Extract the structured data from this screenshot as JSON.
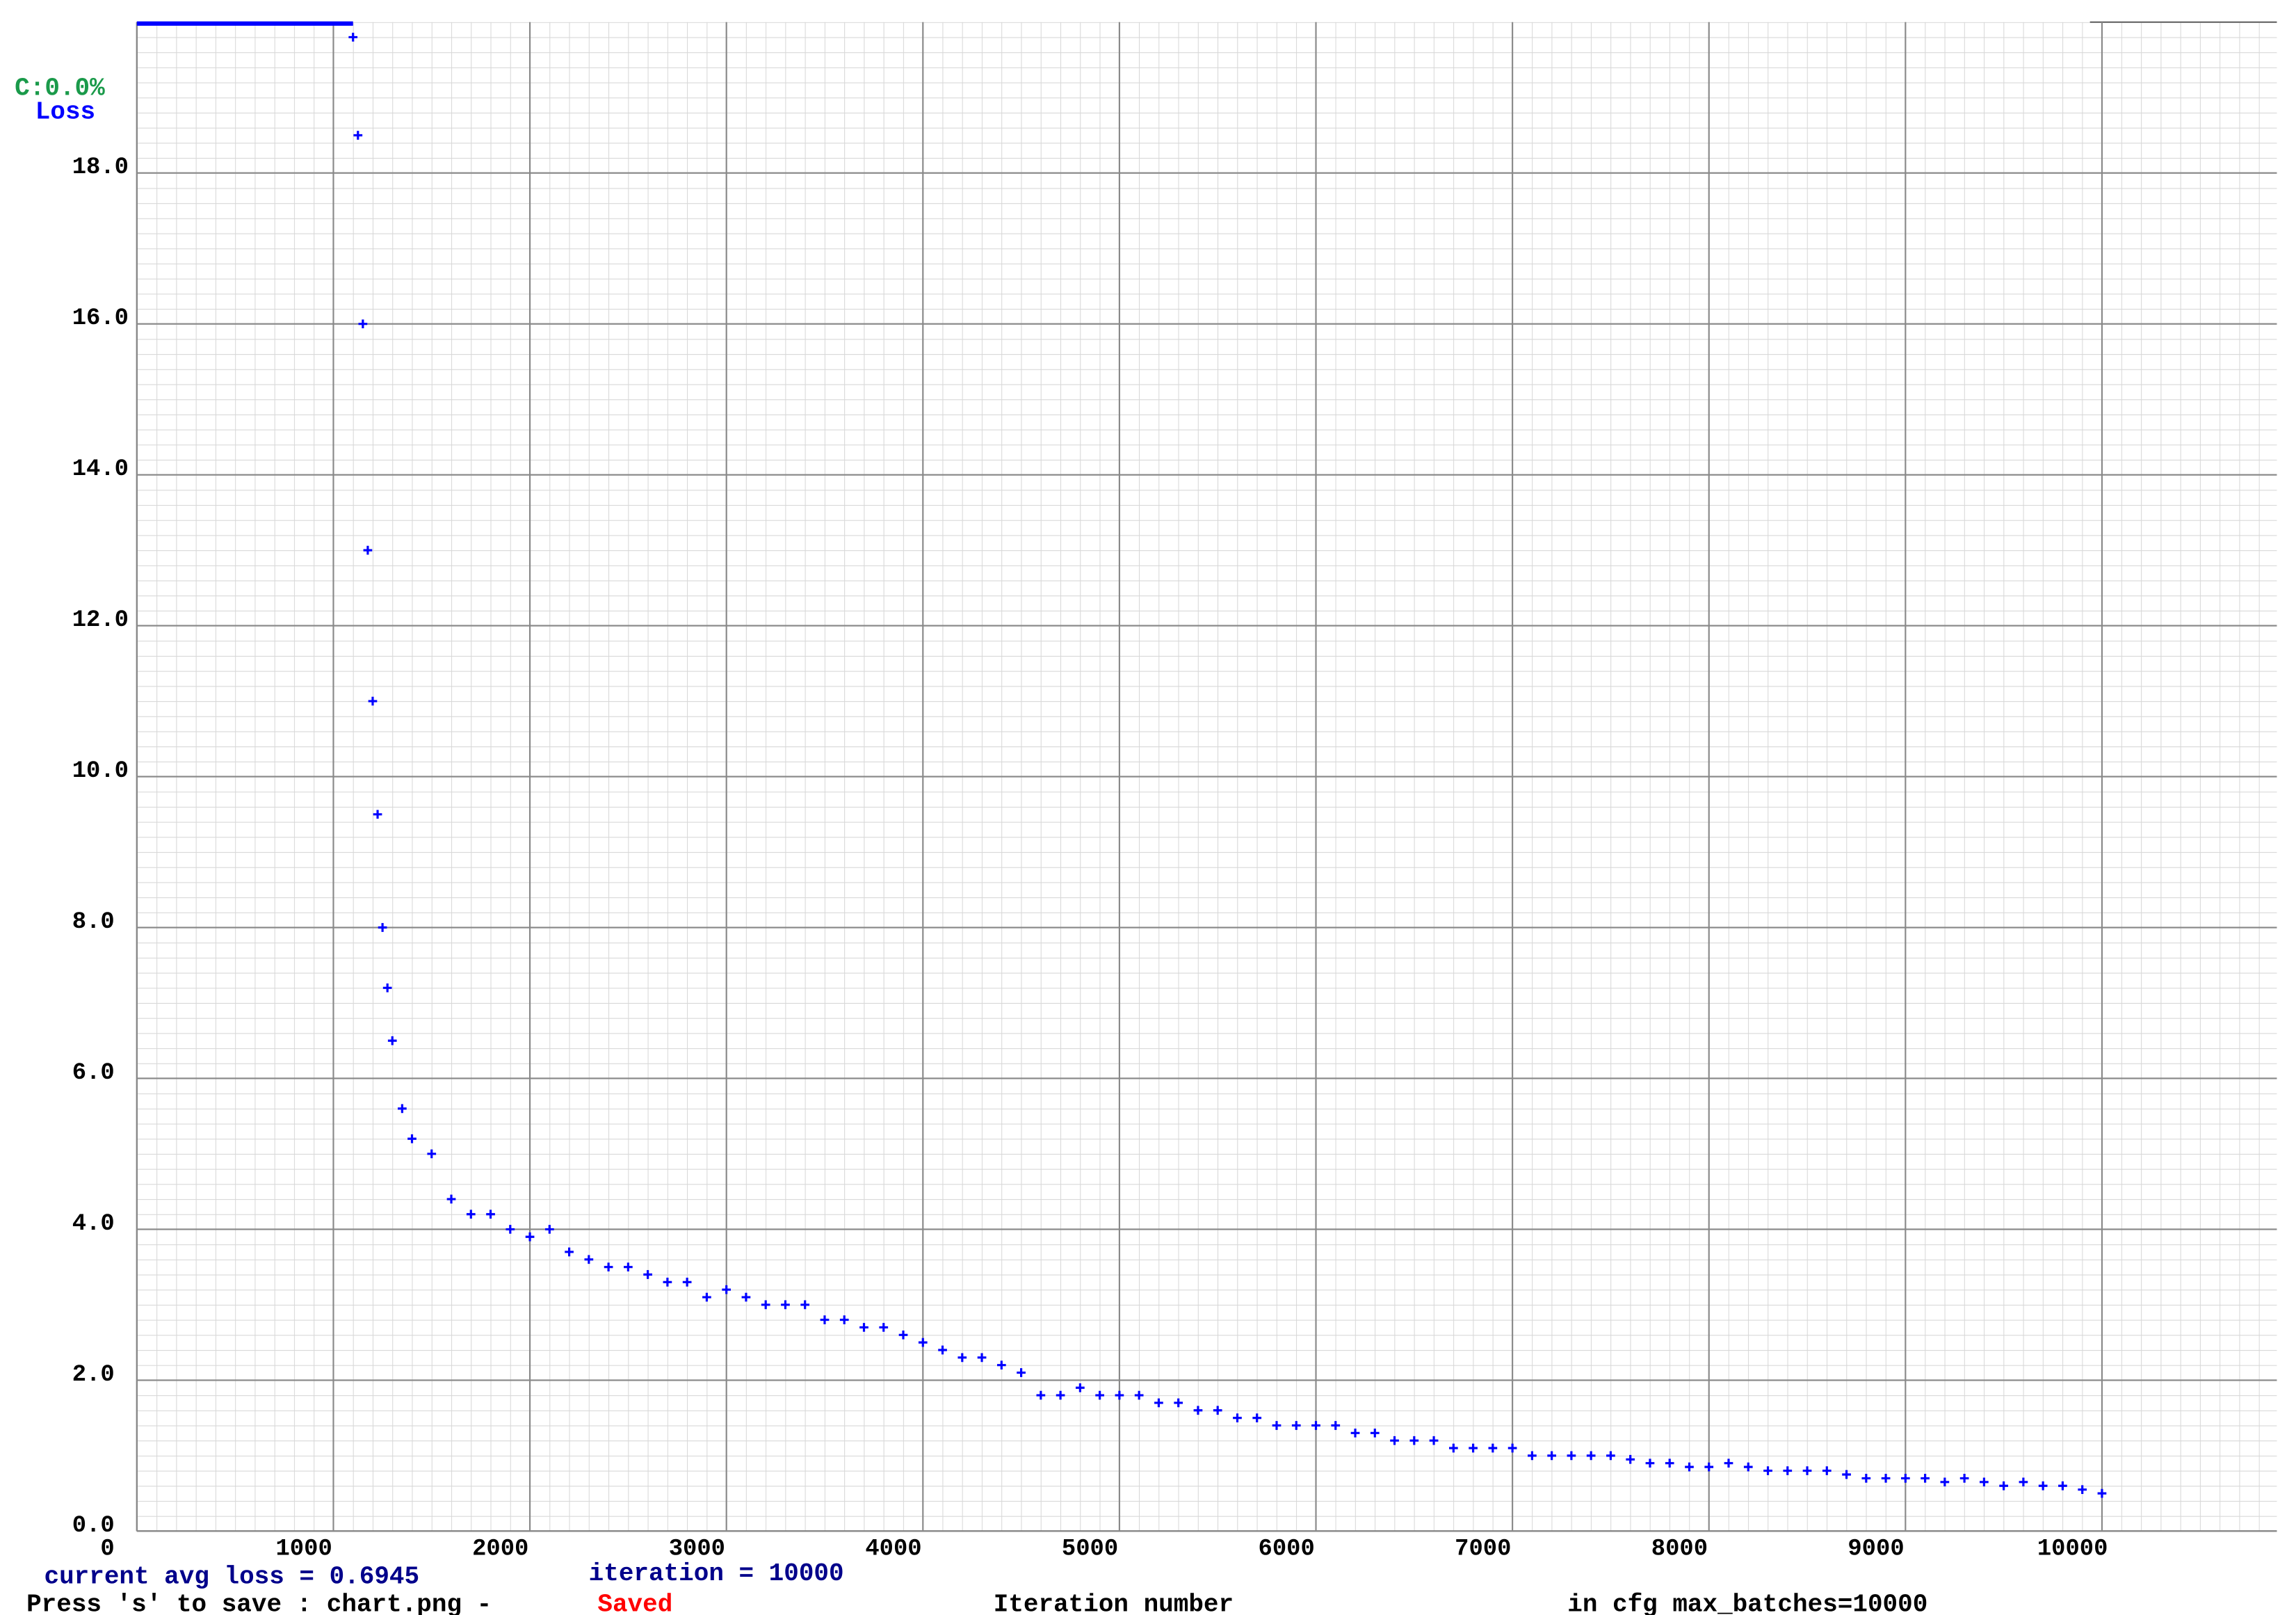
{
  "chart_data": {
    "type": "scatter",
    "x": [
      1100,
      1125,
      1150,
      1175,
      1200,
      1225,
      1250,
      1275,
      1300,
      1350,
      1400,
      1500,
      1600,
      1700,
      1800,
      1900,
      2000,
      2100,
      2200,
      2300,
      2400,
      2500,
      2600,
      2700,
      2800,
      2900,
      3000,
      3100,
      3200,
      3300,
      3400,
      3500,
      3600,
      3700,
      3800,
      3900,
      4000,
      4100,
      4200,
      4300,
      4400,
      4500,
      4600,
      4700,
      4800,
      4900,
      5000,
      5100,
      5200,
      5300,
      5400,
      5500,
      5600,
      5700,
      5800,
      5900,
      6000,
      6100,
      6200,
      6300,
      6400,
      6500,
      6600,
      6700,
      6800,
      6900,
      7000,
      7100,
      7200,
      7300,
      7400,
      7500,
      7600,
      7700,
      7800,
      7900,
      8000,
      8100,
      8200,
      8300,
      8400,
      8500,
      8600,
      8700,
      8800,
      8900,
      9000,
      9100,
      9200,
      9300,
      9400,
      9500,
      9600,
      9700,
      9800,
      9900,
      10000
    ],
    "series": [
      {
        "name": "Loss",
        "color": "#0000ff",
        "values": [
          19.8,
          18.5,
          16,
          13,
          11,
          9.5,
          8,
          7.2,
          6.5,
          5.6,
          5.2,
          5.0,
          4.4,
          4.2,
          4.2,
          4.0,
          3.9,
          4.0,
          3.7,
          3.6,
          3.5,
          3.5,
          3.4,
          3.3,
          3.3,
          3.1,
          3.2,
          3.1,
          3.0,
          3.0,
          3.0,
          2.8,
          2.8,
          2.7,
          2.7,
          2.6,
          2.5,
          2.4,
          2.3,
          2.3,
          2.2,
          2.1,
          1.8,
          1.8,
          1.9,
          1.8,
          1.8,
          1.8,
          1.7,
          1.7,
          1.6,
          1.6,
          1.5,
          1.5,
          1.4,
          1.4,
          1.4,
          1.4,
          1.3,
          1.3,
          1.2,
          1.2,
          1.2,
          1.1,
          1.1,
          1.1,
          1.1,
          1.0,
          1.0,
          1.0,
          1.0,
          1.0,
          0.95,
          0.9,
          0.9,
          0.85,
          0.85,
          0.9,
          0.85,
          0.8,
          0.8,
          0.8,
          0.8,
          0.75,
          0.7,
          0.7,
          0.7,
          0.7,
          0.65,
          0.7,
          0.65,
          0.6,
          0.65,
          0.6,
          0.6,
          0.55,
          0.5
        ]
      }
    ],
    "xlim": [
      0,
      10890
    ],
    "ylim": [
      0,
      20
    ],
    "xticks": [
      0,
      1000,
      2000,
      3000,
      4000,
      5000,
      6000,
      7000,
      8000,
      9000,
      10000
    ],
    "yticks": [
      {
        "value": 0,
        "label": "0.0"
      },
      {
        "value": 2,
        "label": "2.0"
      },
      {
        "value": 4,
        "label": "4.0"
      },
      {
        "value": 6,
        "label": "6.0"
      },
      {
        "value": 8,
        "label": "8.0"
      },
      {
        "value": 10,
        "label": "10.0"
      },
      {
        "value": 12,
        "label": "12.0"
      },
      {
        "value": 14,
        "label": "14.0"
      },
      {
        "value": 16,
        "label": "16.0"
      },
      {
        "value": 18,
        "label": "18.0"
      }
    ],
    "grid": true,
    "x_label": "Iteration number",
    "accuracy_label": "C:0.0%",
    "status": {
      "avg_loss": "current avg loss = 0.6945",
      "iteration": "iteration = 10000",
      "save": "Press 's' to save : chart.png -",
      "saved": "Saved",
      "max_batches": "in cfg max_batches=10000"
    }
  }
}
